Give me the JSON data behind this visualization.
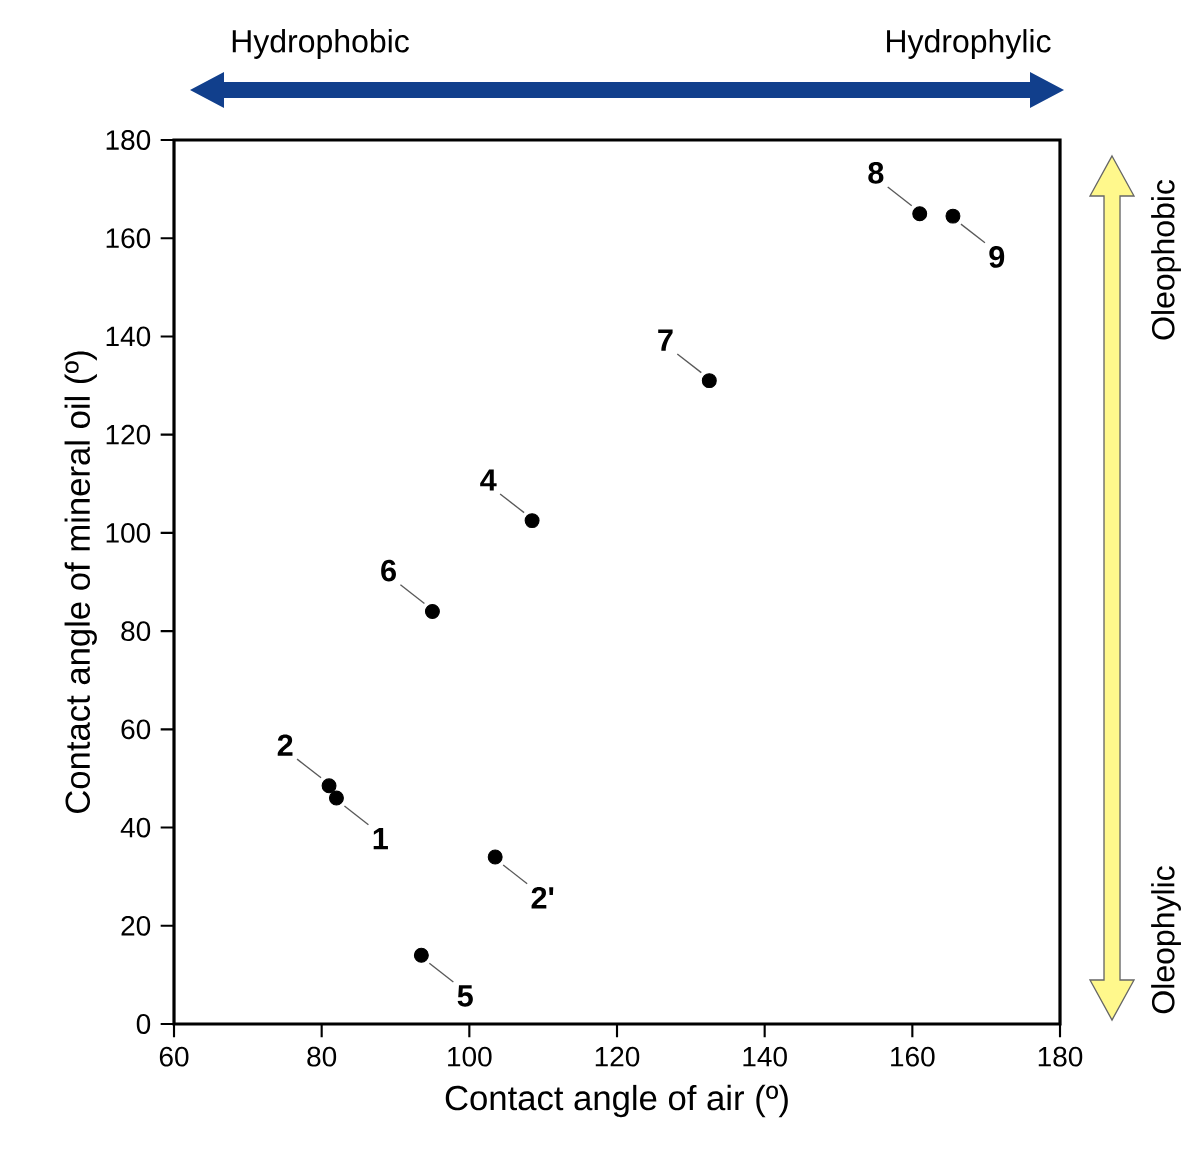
{
  "chart_data": {
    "type": "scatter",
    "xlabel": "Contact angle of air (º)",
    "ylabel": "Contact angle of mineral oil (º)",
    "xlim": [
      60,
      180
    ],
    "ylim": [
      0,
      180
    ],
    "xticks": [
      60,
      80,
      100,
      120,
      140,
      160,
      180
    ],
    "yticks": [
      0,
      20,
      40,
      60,
      80,
      100,
      120,
      140,
      160,
      180
    ],
    "marker": "circle",
    "series": [
      {
        "color": "#000000",
        "x": [
          82,
          81,
          103.5,
          108.5,
          93.5,
          95,
          132.5,
          161,
          165.5
        ],
        "values": [
          46,
          48.5,
          34,
          102.5,
          14,
          84,
          131,
          165,
          164.5
        ]
      }
    ],
    "annotations": [
      {
        "text": "1",
        "x": 82,
        "y": 46
      },
      {
        "text": "2",
        "x": 81,
        "y": 48.5
      },
      {
        "text": "2'",
        "x": 103.5,
        "y": 34
      },
      {
        "text": "4",
        "x": 108.5,
        "y": 102.5
      },
      {
        "text": "5",
        "x": 93.5,
        "y": 14
      },
      {
        "text": "6",
        "x": 95,
        "y": 84
      },
      {
        "text": "7",
        "x": 132.5,
        "y": 131
      },
      {
        "text": "8",
        "x": 161,
        "y": 165
      },
      {
        "text": "9",
        "x": 165.5,
        "y": 164.5
      },
      "Hydrophobic",
      "Hydrophylic",
      "Oleophobic",
      "Oleophylic"
    ]
  }
}
